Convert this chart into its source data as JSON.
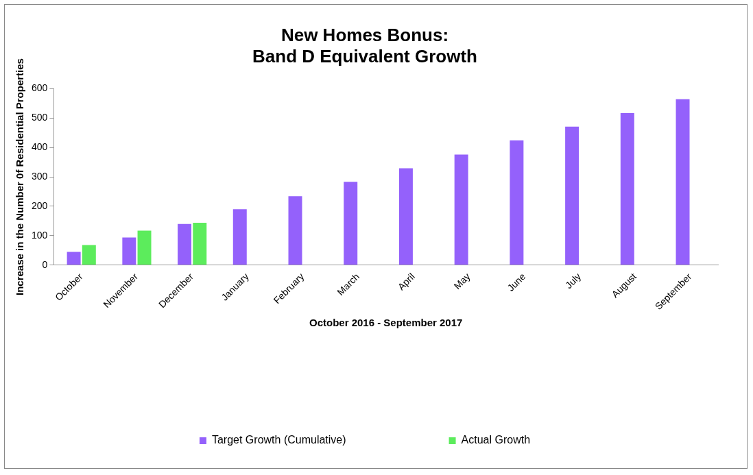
{
  "chart_data": {
    "type": "bar",
    "title": [
      "New Homes Bonus:",
      "Band D Equivalent Growth"
    ],
    "xlabel": "October 2016 - September 2017",
    "ylabel": "Increase in the Number 0f Residential Properties",
    "categories": [
      "October",
      "November",
      "December",
      "January",
      "February",
      "March",
      "April",
      "May",
      "June",
      "July",
      "August",
      "September"
    ],
    "series": [
      {
        "name": "Target Growth (Cumulative)",
        "color": "#9461fb",
        "values": [
          45,
          94,
          140,
          190,
          234,
          283,
          329,
          376,
          424,
          471,
          517,
          564
        ]
      },
      {
        "name": "Actual Growth",
        "color": "#5cec5c",
        "values": [
          68,
          117,
          144,
          null,
          null,
          null,
          null,
          null,
          null,
          null,
          null,
          null
        ]
      }
    ],
    "ylim": [
      0,
      600
    ],
    "yticks": [
      0,
      100,
      200,
      300,
      400,
      500,
      600
    ],
    "grid": false,
    "legend": "bottom"
  }
}
